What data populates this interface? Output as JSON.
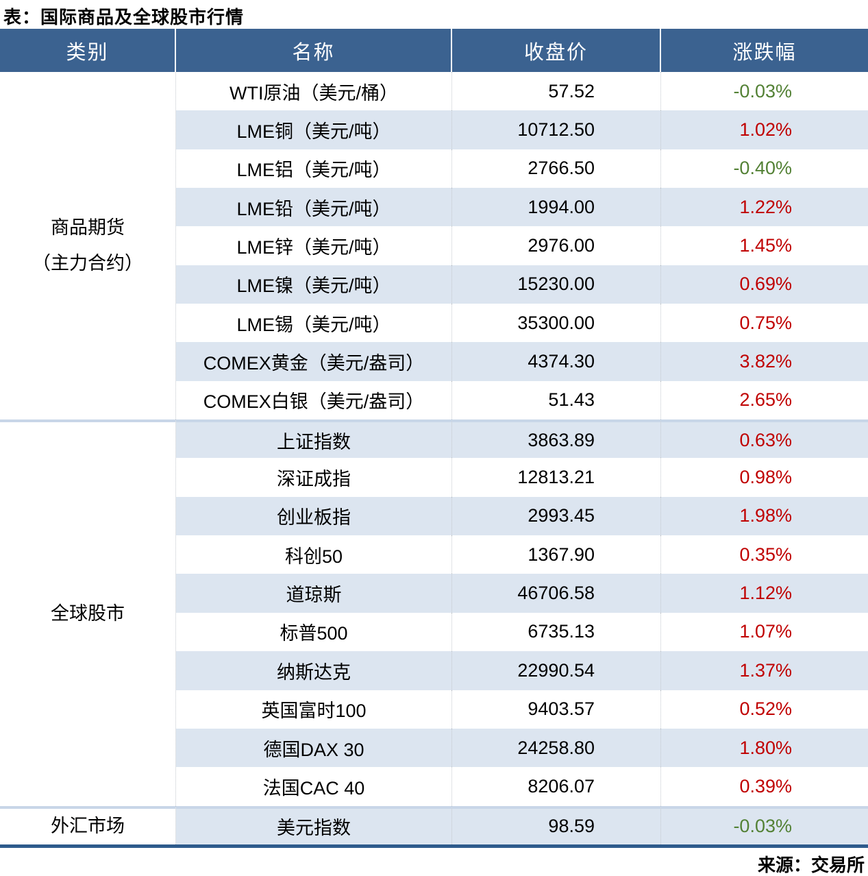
{
  "colors": {
    "header_bg": "#3B6290",
    "row_stripe": "#DCE5F0",
    "up_red": "#C00000",
    "down_green": "#538135",
    "group_separator": "#C8D6E8",
    "table_bottom_border": "#2E5B8C"
  },
  "chart_data": {
    "type": "table",
    "title": "表：国际商品及全球股市行情",
    "columns": [
      "类别",
      "名称",
      "收盘价",
      "涨跌幅"
    ],
    "source": "来源：交易所",
    "change_color_rule": "red = rise, green = fall",
    "groups": [
      {
        "category": [
          "商品期货",
          "（主力合约）"
        ],
        "rows": [
          {
            "name": "WTI原油（美元/桶）",
            "close": "57.52",
            "change": "-0.03%"
          },
          {
            "name": "LME铜（美元/吨）",
            "close": "10712.50",
            "change": "1.02%"
          },
          {
            "name": "LME铝（美元/吨）",
            "close": "2766.50",
            "change": "-0.40%"
          },
          {
            "name": "LME铅（美元/吨）",
            "close": "1994.00",
            "change": "1.22%"
          },
          {
            "name": "LME锌（美元/吨）",
            "close": "2976.00",
            "change": "1.45%"
          },
          {
            "name": "LME镍（美元/吨）",
            "close": "15230.00",
            "change": "0.69%"
          },
          {
            "name": "LME锡（美元/吨）",
            "close": "35300.00",
            "change": "0.75%"
          },
          {
            "name": "COMEX黄金（美元/盎司）",
            "close": "4374.30",
            "change": "3.82%"
          },
          {
            "name": "COMEX白银（美元/盎司）",
            "close": "51.43",
            "change": "2.65%"
          }
        ]
      },
      {
        "category": [
          "全球股市"
        ],
        "rows": [
          {
            "name": "上证指数",
            "close": "3863.89",
            "change": "0.63%"
          },
          {
            "name": "深证成指",
            "close": "12813.21",
            "change": "0.98%"
          },
          {
            "name": "创业板指",
            "close": "2993.45",
            "change": "1.98%"
          },
          {
            "name": "科创50",
            "close": "1367.90",
            "change": "0.35%"
          },
          {
            "name": "道琼斯",
            "close": "46706.58",
            "change": "1.12%"
          },
          {
            "name": "标普500",
            "close": "6735.13",
            "change": "1.07%"
          },
          {
            "name": "纳斯达克",
            "close": "22990.54",
            "change": "1.37%"
          },
          {
            "name": "英国富时100",
            "close": "9403.57",
            "change": "0.52%"
          },
          {
            "name": "德国DAX 30",
            "close": "24258.80",
            "change": "1.80%"
          },
          {
            "name": "法国CAC 40",
            "close": "8206.07",
            "change": "0.39%"
          }
        ]
      },
      {
        "category": [
          "外汇市场"
        ],
        "rows": [
          {
            "name": "美元指数",
            "close": "98.59",
            "change": "-0.03%"
          }
        ]
      }
    ]
  }
}
